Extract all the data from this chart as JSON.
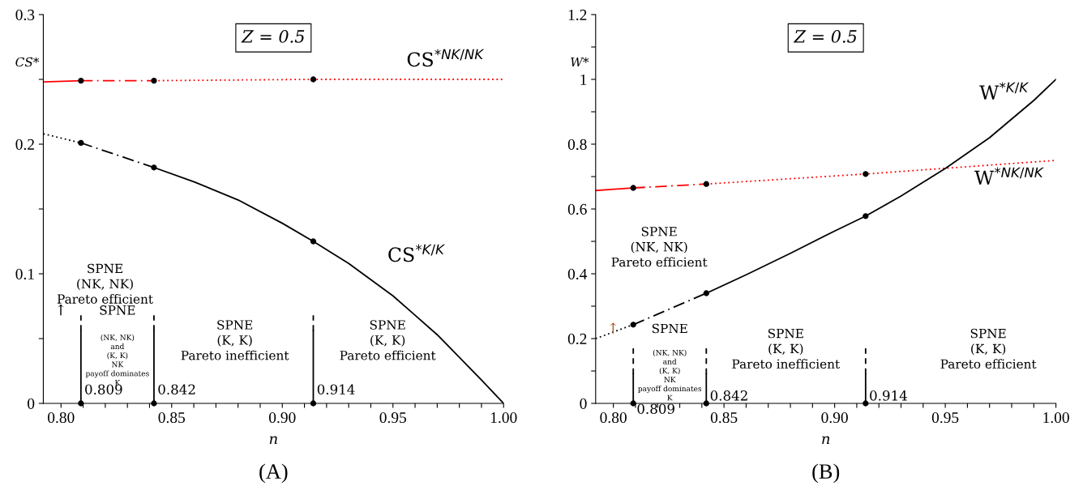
{
  "chart_data": [
    {
      "type": "line",
      "title": "Z = 0.5",
      "subtitle": "(A)",
      "xlabel": "n",
      "ylabel": "CS*",
      "xlim": [
        0.792,
        1.0
      ],
      "ylim": [
        0,
        0.3
      ],
      "xticks": [
        {
          "value": 0.8,
          "label": "0.80"
        },
        {
          "value": 0.81,
          "label": null
        },
        {
          "value": 0.82,
          "label": null
        },
        {
          "value": 0.83,
          "label": null
        },
        {
          "value": 0.84,
          "label": null
        },
        {
          "value": 0.85,
          "label": "0.85"
        },
        {
          "value": 0.86,
          "label": null
        },
        {
          "value": 0.87,
          "label": null
        },
        {
          "value": 0.88,
          "label": null
        },
        {
          "value": 0.89,
          "label": null
        },
        {
          "value": 0.9,
          "label": "0.90"
        },
        {
          "value": 0.91,
          "label": null
        },
        {
          "value": 0.92,
          "label": null
        },
        {
          "value": 0.93,
          "label": null
        },
        {
          "value": 0.94,
          "label": null
        },
        {
          "value": 0.95,
          "label": "0.95"
        },
        {
          "value": 0.96,
          "label": null
        },
        {
          "value": 0.97,
          "label": null
        },
        {
          "value": 0.98,
          "label": null
        },
        {
          "value": 0.99,
          "label": null
        },
        {
          "value": 1.0,
          "label": "1.00"
        }
      ],
      "yticks": [
        0,
        {
          "value": 0.05,
          "label": null
        },
        0.1,
        {
          "value": 0.15,
          "label": null
        },
        0.2,
        {
          "value": 0.25,
          "label": null
        },
        0.3
      ],
      "grid": false,
      "legend": false,
      "series": [
        {
          "x": [
            0.792,
            0.809
          ],
          "values": [
            0.248,
            0.249
          ],
          "color": "#ff0000",
          "line_style": "solid"
        },
        {
          "x": [
            0.809,
            0.842
          ],
          "values": [
            0.249,
            0.249
          ],
          "color": "#ff0000",
          "line_style": "dashdot"
        },
        {
          "name": "CS$^{*NK/NK}$",
          "x": [
            0.842,
            0.914,
            1.0
          ],
          "values": [
            0.249,
            0.25,
            0.25
          ],
          "color": "#ff0000",
          "line_style": "dotted"
        },
        {
          "x": [
            0.792,
            0.809
          ],
          "values": [
            0.208,
            0.201
          ],
          "color": "#000000",
          "line_style": "dotted"
        },
        {
          "x": [
            0.809,
            0.842
          ],
          "values": [
            0.201,
            0.182
          ],
          "color": "#000000",
          "line_style": "dashdot"
        },
        {
          "name": "CS$^{*K/K}$",
          "x": [
            0.842,
            0.86,
            0.88,
            0.9,
            0.914,
            0.93,
            0.95,
            0.97,
            0.99,
            1.0
          ],
          "values": [
            0.182,
            0.171,
            0.157,
            0.139,
            0.125,
            0.108,
            0.083,
            0.053,
            0.018,
            0
          ],
          "color": "#000000",
          "line_style": "solid"
        },
        {
          "x": [
            0.809,
            0.809
          ],
          "values": [
            0,
            0.056
          ],
          "color": "#000000",
          "line_style": "solid"
        },
        {
          "x": [
            0.809,
            0.809
          ],
          "values": [
            0.056,
            0.068
          ],
          "color": "#000000",
          "line_style": "dashed"
        },
        {
          "x": [
            0.842,
            0.842
          ],
          "values": [
            0,
            0.056
          ],
          "color": "#000000",
          "line_style": "solid"
        },
        {
          "x": [
            0.842,
            0.842
          ],
          "values": [
            0.056,
            0.068
          ],
          "color": "#000000",
          "line_style": "dashed"
        },
        {
          "x": [
            0.914,
            0.914
          ],
          "values": [
            0,
            0.056
          ],
          "color": "#000000",
          "line_style": "solid"
        },
        {
          "x": [
            0.914,
            0.914
          ],
          "values": [
            0.056,
            0.068
          ],
          "color": "#000000",
          "line_style": "dashed"
        },
        {
          "type": "scatter",
          "x": [
            0.809,
            0.842,
            0.914,
            0.809,
            0.842,
            0.914,
            0.809,
            0.842,
            0.914
          ],
          "values": [
            0.249,
            0.249,
            0.25,
            0.201,
            0.182,
            0.125,
            0,
            0,
            0
          ],
          "color": "#000000",
          "marker": "circle"
        }
      ],
      "annotations": [
        "SPNE\n(NK, NK)\nPareto efficient",
        "↑",
        "SPNE",
        "(NK, NK)\nand\n(K, K)\nNK\npayoff dominates\nK",
        "SPNE\n(K, K)\nPareto inefficient",
        "SPNE\n(K, K)\nPareto efficient",
        "0.809",
        "0.842",
        "0.914"
      ]
    },
    {
      "type": "line",
      "title": "Z = 0.5",
      "subtitle": "(B)",
      "xlabel": "n",
      "ylabel": "W*",
      "xlim": [
        0.792,
        1.0
      ],
      "ylim": [
        0,
        1.2
      ],
      "xticks": [
        {
          "value": 0.8,
          "label": "0.80"
        },
        {
          "value": 0.81,
          "label": null
        },
        {
          "value": 0.82,
          "label": null
        },
        {
          "value": 0.83,
          "label": null
        },
        {
          "value": 0.84,
          "label": null
        },
        {
          "value": 0.85,
          "label": "0.85"
        },
        {
          "value": 0.86,
          "label": null
        },
        {
          "value": 0.87,
          "label": null
        },
        {
          "value": 0.88,
          "label": null
        },
        {
          "value": 0.89,
          "label": null
        },
        {
          "value": 0.9,
          "label": "0.90"
        },
        {
          "value": 0.91,
          "label": null
        },
        {
          "value": 0.92,
          "label": null
        },
        {
          "value": 0.93,
          "label": null
        },
        {
          "value": 0.94,
          "label": null
        },
        {
          "value": 0.95,
          "label": "0.95"
        },
        {
          "value": 0.96,
          "label": null
        },
        {
          "value": 0.97,
          "label": null
        },
        {
          "value": 0.98,
          "label": null
        },
        {
          "value": 0.99,
          "label": null
        },
        {
          "value": 1.0,
          "label": "1.00"
        }
      ],
      "yticks": [
        0,
        {
          "value": 0.1,
          "label": null
        },
        0.2,
        {
          "value": 0.3,
          "label": null
        },
        0.4,
        {
          "value": 0.5,
          "label": null
        },
        0.6,
        {
          "value": 0.7,
          "label": null
        },
        0.8,
        {
          "value": 0.9,
          "label": null
        },
        1,
        {
          "value": 1.1,
          "label": null
        },
        1.2
      ],
      "grid": false,
      "legend": false,
      "series": [
        {
          "x": [
            0.792,
            0.809
          ],
          "values": [
            0.657,
            0.665
          ],
          "color": "#ff0000",
          "line_style": "solid"
        },
        {
          "x": [
            0.809,
            0.842
          ],
          "values": [
            0.665,
            0.677
          ],
          "color": "#ff0000",
          "line_style": "dashdot"
        },
        {
          "name": "W$^{*NK/NK}$",
          "x": [
            0.842,
            0.914,
            1.0
          ],
          "values": [
            0.677,
            0.708,
            0.75
          ],
          "color": "#ff0000",
          "line_style": "dotted"
        },
        {
          "x": [
            0.792,
            0.809
          ],
          "values": [
            0.2,
            0.243
          ],
          "color": "#000000",
          "line_style": "dotted"
        },
        {
          "x": [
            0.809,
            0.842
          ],
          "values": [
            0.243,
            0.34
          ],
          "color": "#000000",
          "line_style": "dashdot"
        },
        {
          "name": "W$^{*K/K}$",
          "x": [
            0.842,
            0.86,
            0.88,
            0.9,
            0.914,
            0.93,
            0.95,
            0.97,
            0.99,
            1.0
          ],
          "values": [
            0.34,
            0.397,
            0.463,
            0.532,
            0.578,
            0.64,
            0.725,
            0.82,
            0.935,
            1.0
          ],
          "color": "#000000",
          "line_style": "solid"
        },
        {
          "x": [
            0.809,
            0.809
          ],
          "values": [
            0,
            0.09
          ],
          "color": "#000000",
          "line_style": "solid"
        },
        {
          "x": [
            0.809,
            0.809
          ],
          "values": [
            0.09,
            0.17
          ],
          "color": "#000000",
          "line_style": "dashed"
        },
        {
          "x": [
            0.842,
            0.842
          ],
          "values": [
            0,
            0.09
          ],
          "color": "#000000",
          "line_style": "solid"
        },
        {
          "x": [
            0.842,
            0.842
          ],
          "values": [
            0.09,
            0.17
          ],
          "color": "#000000",
          "line_style": "dashed"
        },
        {
          "x": [
            0.914,
            0.914
          ],
          "values": [
            0,
            0.09
          ],
          "color": "#000000",
          "line_style": "solid"
        },
        {
          "x": [
            0.914,
            0.914
          ],
          "values": [
            0.09,
            0.17
          ],
          "color": "#000000",
          "line_style": "dashed"
        },
        {
          "type": "scatter",
          "x": [
            0.809,
            0.842,
            0.914,
            0.809,
            0.842,
            0.914,
            0.809,
            0.842,
            0.914
          ],
          "values": [
            0.665,
            0.677,
            0.708,
            0.243,
            0.34,
            0.578,
            0,
            0,
            0
          ],
          "color": "#000000",
          "marker": "circle"
        }
      ],
      "annotations": [
        "SPNE\n(NK, NK)\nPareto efficient",
        "↑",
        "SPNE",
        "(NK, NK)\nand\n(K, K)\nNK\npayoff dominates\nK",
        "SPNE\n(K, K)\nPareto inefficient",
        "SPNE\n(K, K)\nPareto efficient",
        "0.809",
        "0.842",
        "0.914"
      ]
    }
  ]
}
